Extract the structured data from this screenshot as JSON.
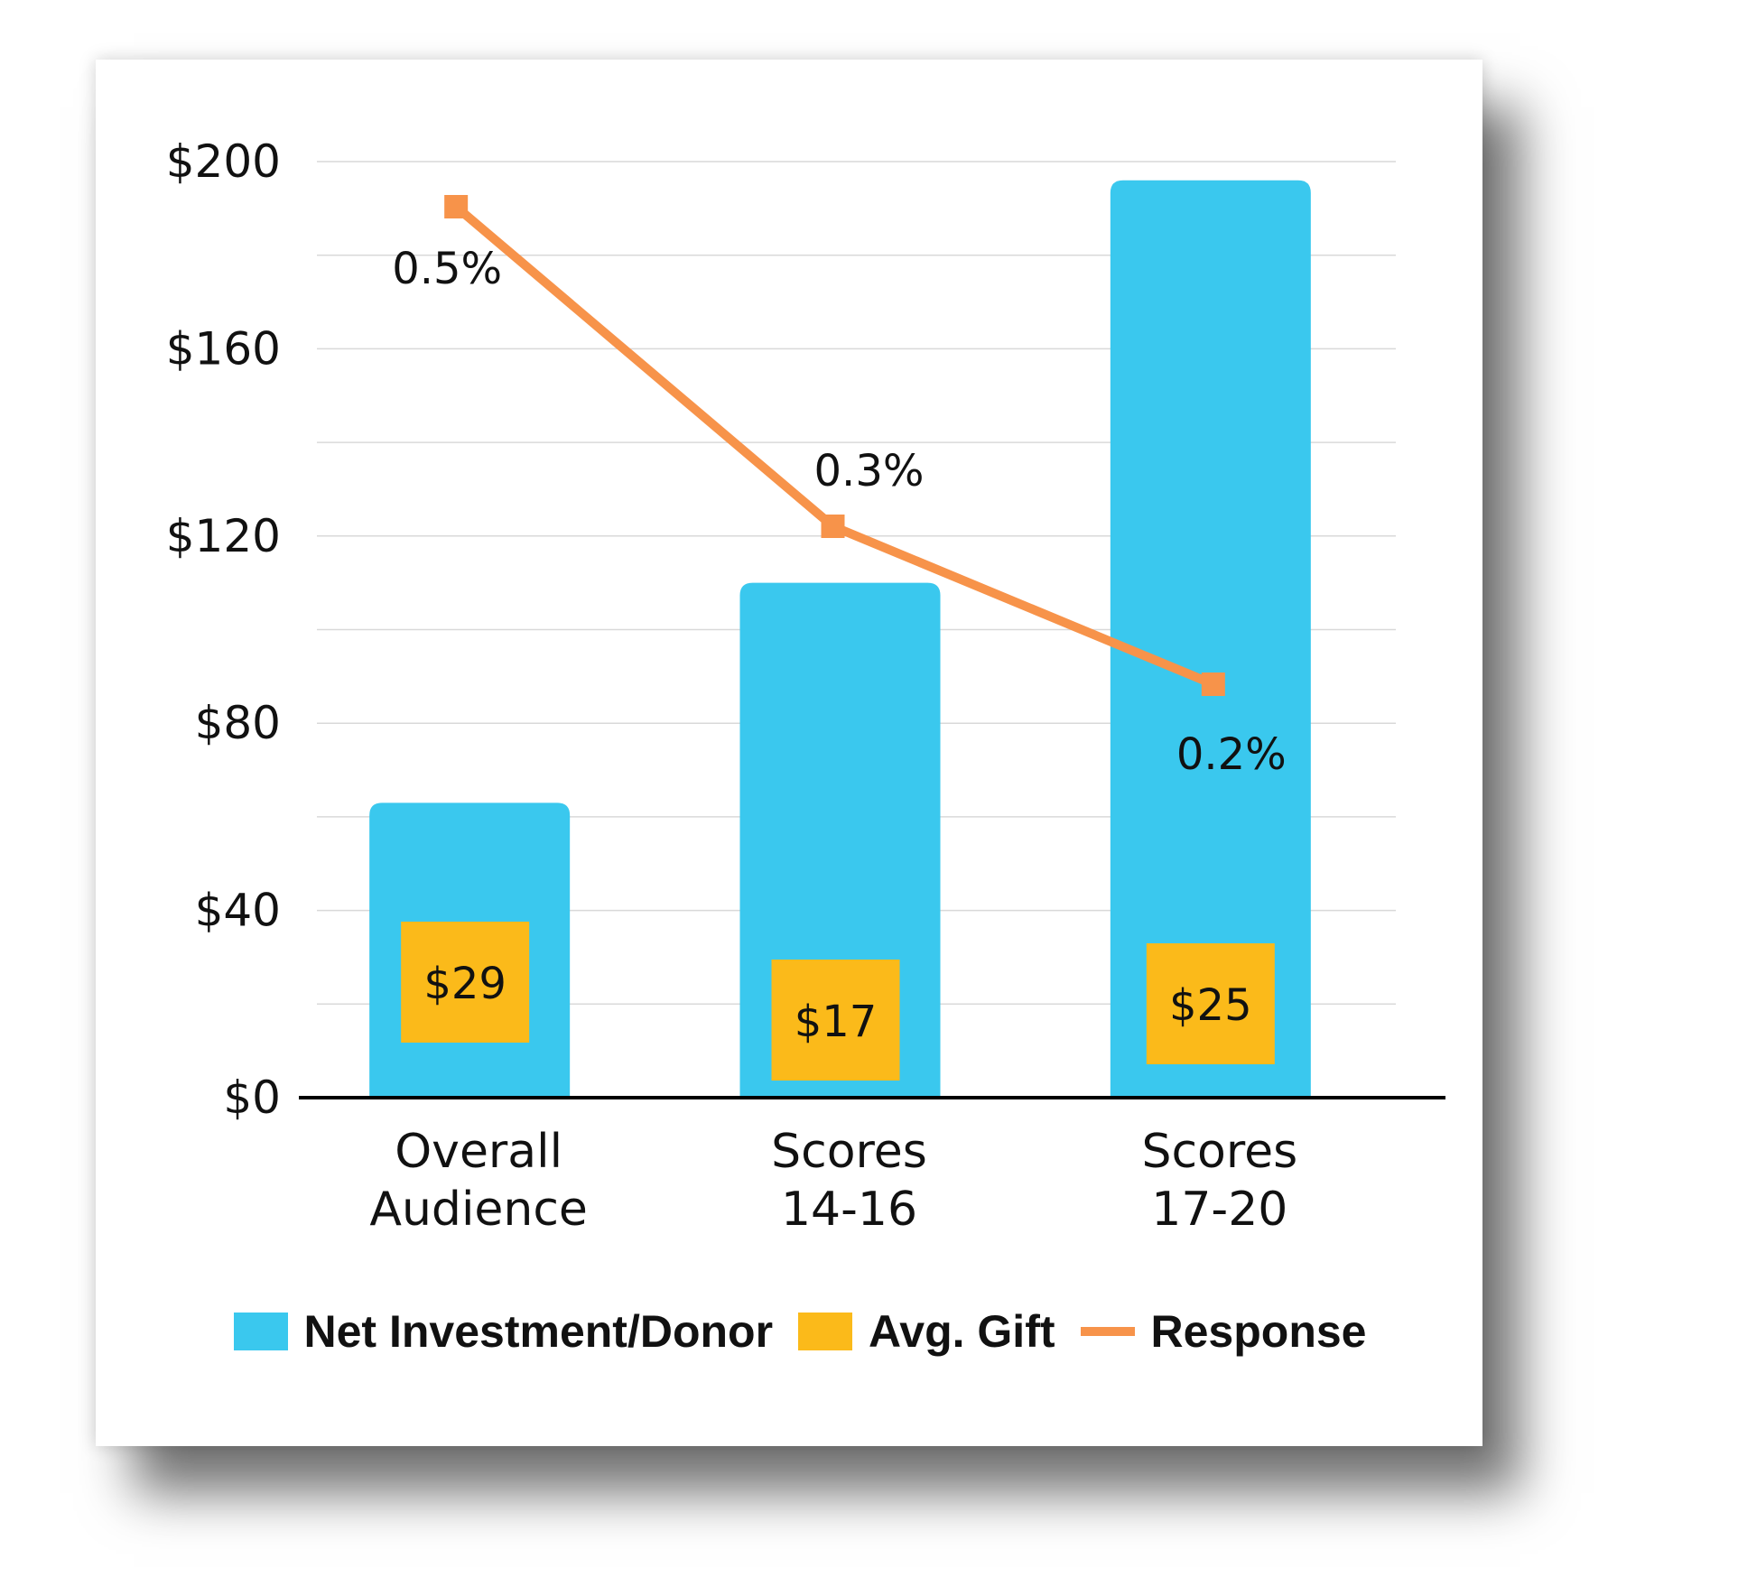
{
  "chart_data": {
    "type": "bar",
    "categories": [
      [
        "Overall",
        "Audience"
      ],
      [
        "Scores",
        "14-16"
      ],
      [
        "Scores",
        "17-20"
      ]
    ],
    "y_ticks": [
      "$0",
      "$40",
      "$80",
      "$120",
      "$160",
      "$200"
    ],
    "ylim": [
      0,
      200
    ],
    "grid": true,
    "legend_position": "bottom",
    "series": [
      {
        "name": "Net Investment/Donor",
        "type": "bar",
        "color": "#3AC8EE",
        "values": [
          63,
          110,
          196
        ]
      },
      {
        "name": "Avg. Gift",
        "type": "label-box",
        "color": "#FBBA1A",
        "values": [
          29,
          17,
          25
        ],
        "labels": [
          "$29",
          "$17",
          "$25"
        ]
      },
      {
        "name": "Response",
        "type": "line",
        "color": "#F7934A",
        "values": [
          0.5,
          0.3,
          0.2
        ],
        "labels": [
          "0.5%",
          "0.3%",
          "0.2%"
        ]
      }
    ]
  },
  "legend": {
    "net_investment": "Net Investment/Donor",
    "avg_gift": "Avg. Gift",
    "response": "Response"
  }
}
